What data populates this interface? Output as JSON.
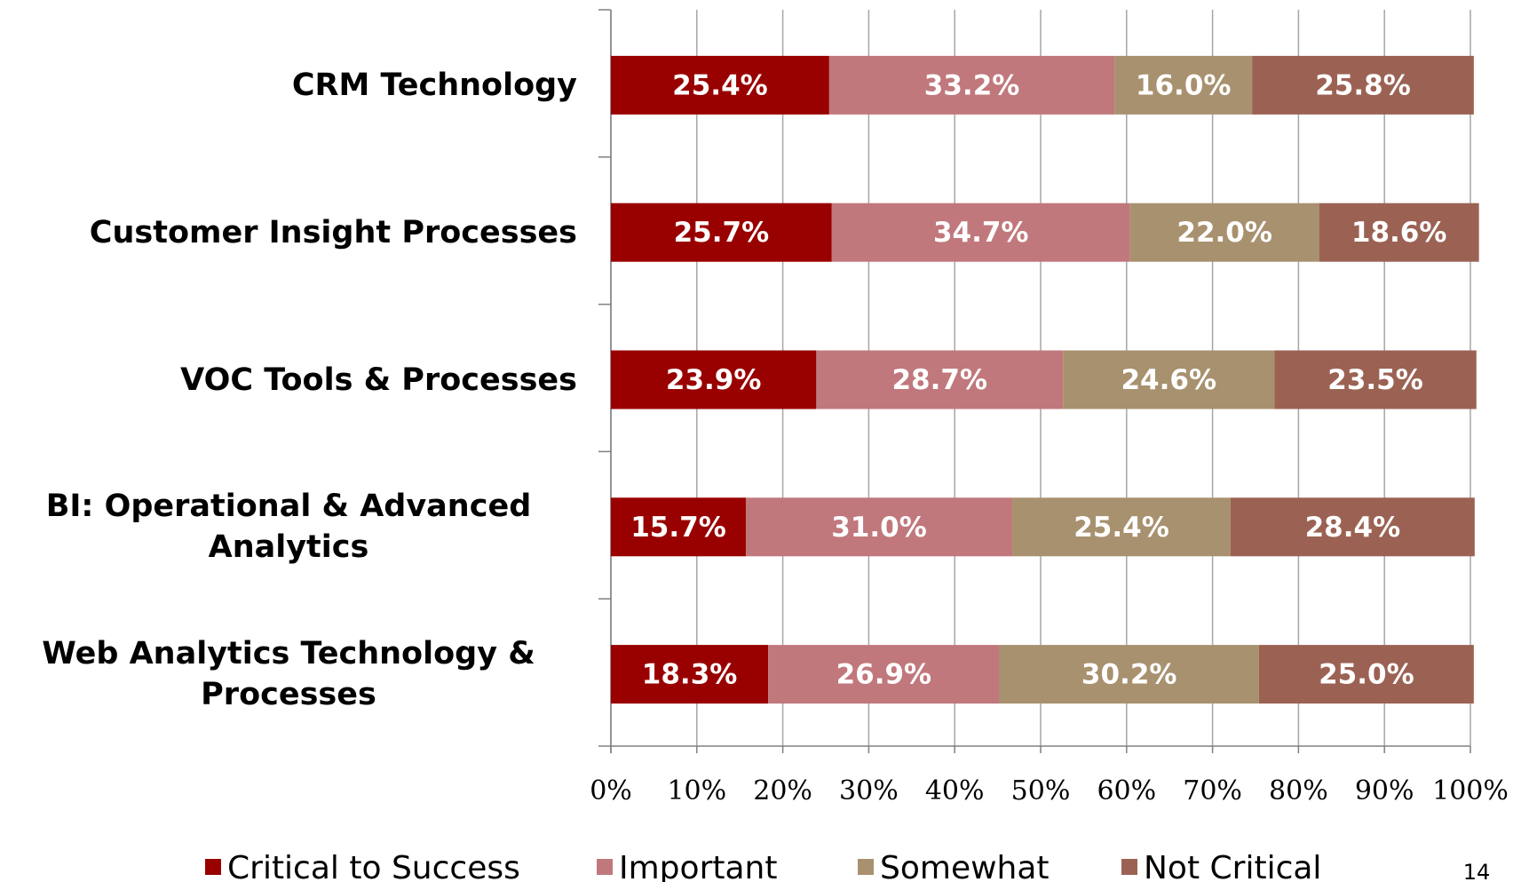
{
  "chart_data": {
    "type": "stacked-bar-horizontal",
    "categories": [
      "CRM Technology",
      "Customer Insight Processes",
      "VOC Tools & Processes",
      "BI: Operational & Advanced Analytics",
      "Web Analytics Technology & Processes"
    ],
    "series": [
      {
        "name": "Critical to Success",
        "color": "#990000",
        "values": [
          25.4,
          25.7,
          23.9,
          15.7,
          18.3
        ],
        "value_labels": [
          "25.4%",
          "25.7%",
          "23.9%",
          "15.7%",
          "18.3%"
        ]
      },
      {
        "name": "Important",
        "color": "#c0787c",
        "values": [
          33.2,
          34.7,
          28.7,
          31.0,
          26.9
        ],
        "value_labels": [
          "33.2%",
          "34.7%",
          "28.7%",
          "31.0%",
          "26.9%"
        ]
      },
      {
        "name": "Somewhat",
        "color": "#a8916f",
        "values": [
          16.0,
          22.0,
          24.6,
          25.4,
          30.2
        ],
        "value_labels": [
          "16.0%",
          "22.0%",
          "24.6%",
          "25.4%",
          "30.2%"
        ]
      },
      {
        "name": "Not Critical",
        "color": "#9b6254",
        "values": [
          25.8,
          18.6,
          23.5,
          28.4,
          25.0
        ],
        "value_labels": [
          "25.8%",
          "18.6%",
          "23.5%",
          "28.4%",
          "25.0%"
        ]
      }
    ],
    "xlim": [
      0,
      100
    ],
    "xticks": [
      {
        "value": 0,
        "label": "0%"
      },
      {
        "value": 10,
        "label": "10%"
      },
      {
        "value": 20,
        "label": "20%"
      },
      {
        "value": 30,
        "label": "30%"
      },
      {
        "value": 40,
        "label": "40%"
      },
      {
        "value": 50,
        "label": "50%"
      },
      {
        "value": 60,
        "label": "60%"
      },
      {
        "value": 70,
        "label": "70%"
      },
      {
        "value": 80,
        "label": "80%"
      },
      {
        "value": 90,
        "label": "90%"
      },
      {
        "value": 100,
        "label": "100%"
      }
    ],
    "grid": true,
    "legend": "bottom"
  },
  "page_number": "14"
}
